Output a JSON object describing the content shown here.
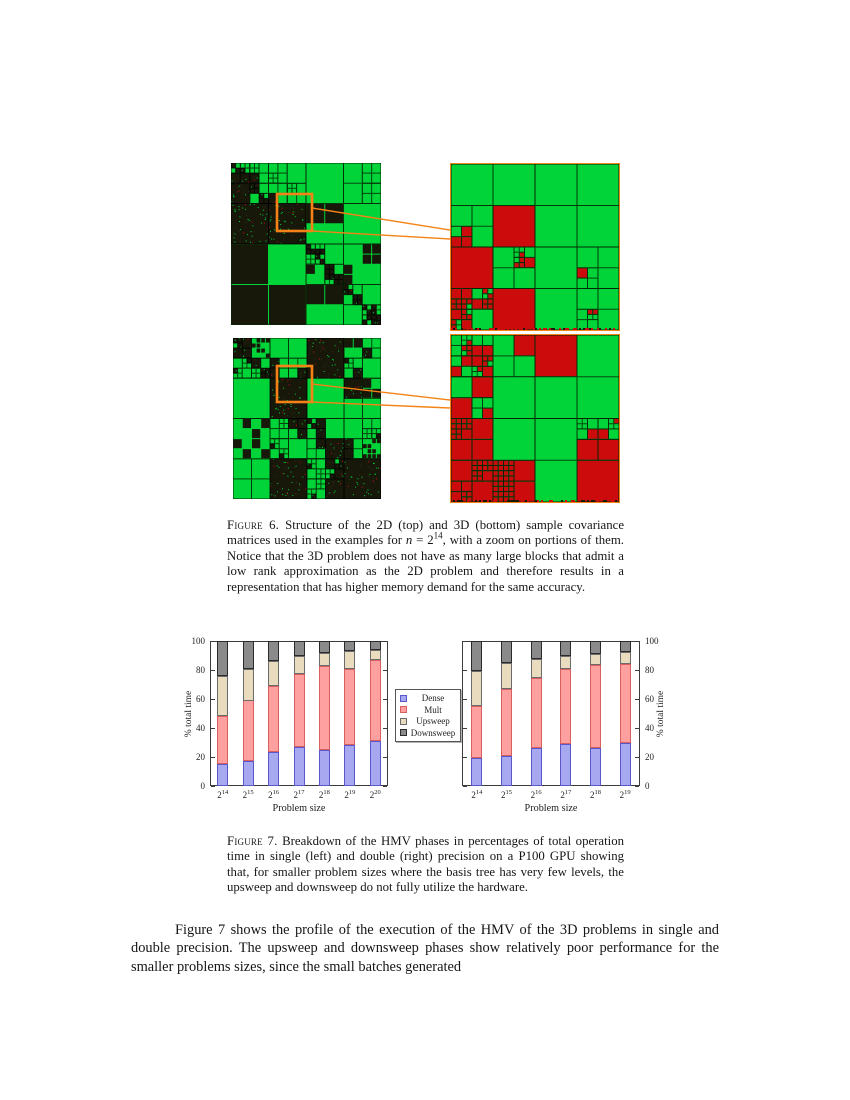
{
  "figure6": {
    "caption": {
      "label": "Figure 6.",
      "part1": "Structure of the 2D (top) and 3D (bottom) sample covariance matrices used in the examples for ",
      "var": "n",
      "equals": " = 2",
      "exponent": "14",
      "part2": ", with a zoom on portions of them. Notice that the 3D problem does not have as many large blocks that admit a low rank approximation as the 2D problem and therefore results in a representation that has higher memory demand for the same accuracy."
    },
    "colors": {
      "green": "#00d438",
      "red": "#cc0c0c",
      "dark": "#17170a",
      "orange": "#f58216",
      "grid": "#063a06"
    },
    "panels": {
      "matrix_2d": {
        "kind": "full",
        "seed": 11,
        "diagSplitP": 0.8,
        "sNear": 0.9,
        "sMid": 0.45,
        "sFar": 0.18,
        "decay": 0.25,
        "dNear": 0.5,
        "dMid": 0.15,
        "dFar": 0.02,
        "clusterFill": 0.4,
        "maxDepth": 5
      },
      "matrix_3d": {
        "kind": "full",
        "seed": 29,
        "diagSplitP": 0.45,
        "sNear": 0.9,
        "sMid": 0.6,
        "sFar": 0.45,
        "decay": 0.2,
        "dNear": 0.55,
        "dMid": 0.35,
        "dFar": 0.18,
        "clusterFill": 0.5,
        "maxDepth": 5
      },
      "zoom_2d": {
        "kind": "zoom",
        "seed": 5,
        "maxDepth": 5,
        "base": 0.15,
        "gain": 1.2,
        "redBase": -0.08,
        "redGain": 1.05,
        "clusters": [
          [
            0.03,
            0.62,
            0.2
          ],
          [
            0.1,
            0.78,
            0.24
          ],
          [
            0.24,
            0.9,
            0.22
          ],
          [
            0.38,
            0.99,
            0.16
          ],
          [
            0.45,
            0.6,
            0.09
          ],
          [
            0.3,
            0.44,
            0.07
          ],
          [
            0.96,
            0.04,
            0.09
          ],
          [
            0.56,
            0.36,
            0.06
          ],
          [
            0.76,
            0.63,
            0.05
          ],
          [
            0.86,
            0.86,
            0.06
          ]
        ]
      },
      "zoom_3d": {
        "kind": "zoom",
        "seed": 17,
        "maxDepth": 5,
        "base": 0.25,
        "gain": 1.1,
        "redBase": -0.03,
        "redGain": 1.25,
        "clusters": [
          [
            0.1,
            0.78,
            0.38
          ],
          [
            0.28,
            0.92,
            0.28
          ],
          [
            0.05,
            0.52,
            0.14
          ],
          [
            0.42,
            0.04,
            0.11
          ],
          [
            0.66,
            0.06,
            0.11
          ],
          [
            0.78,
            0.28,
            0.1
          ],
          [
            0.3,
            0.28,
            0.09
          ],
          [
            0.56,
            0.5,
            0.09
          ],
          [
            0.86,
            0.66,
            0.09
          ],
          [
            0.76,
            0.9,
            0.1
          ],
          [
            0.95,
            0.45,
            0.07
          ],
          [
            0.15,
            0.13,
            0.08
          ]
        ]
      }
    }
  },
  "chart_data": [
    {
      "type": "bar",
      "stacked": true,
      "precision": "single",
      "categories": [
        "2^14",
        "2^15",
        "2^16",
        "2^17",
        "2^18",
        "2^19",
        "2^20"
      ],
      "exponents": [
        14,
        15,
        16,
        17,
        18,
        19,
        20
      ],
      "series": [
        {
          "name": "Dense",
          "fill": "#a8a8f0",
          "edge": "#5858cc",
          "values": [
            15.5,
            17.5,
            23.5,
            27,
            25,
            28,
            31
          ]
        },
        {
          "name": "Mult",
          "fill": "#ffa0a0",
          "edge": "#d95f5f",
          "values": [
            33,
            41.5,
            45.5,
            50,
            58,
            53,
            56
          ]
        },
        {
          "name": "Upsweep",
          "fill": "#e9dbbd",
          "edge": "#6b6b6b",
          "values": [
            27.5,
            22,
            17.5,
            12.5,
            9,
            12,
            6.5
          ]
        },
        {
          "name": "Downsweep",
          "fill": "#8a8a8a",
          "edge": "#2b2b2b",
          "values": [
            24,
            19,
            13.5,
            10.5,
            8,
            7,
            6.5
          ]
        }
      ],
      "xlabel": "Problem size",
      "ylabel": "% total time",
      "ylim": [
        0,
        100
      ],
      "yticks": [
        0,
        20,
        40,
        60,
        80,
        100
      ],
      "axis_side": "left",
      "grid": false,
      "legend_position": "right-of-chart"
    },
    {
      "type": "bar",
      "stacked": true,
      "precision": "double",
      "categories": [
        "2^14",
        "2^15",
        "2^16",
        "2^17",
        "2^18",
        "2^19"
      ],
      "exponents": [
        14,
        15,
        16,
        17,
        18,
        19
      ],
      "series": [
        {
          "name": "Dense",
          "fill": "#a8a8f0",
          "edge": "#5858cc",
          "values": [
            19,
            21,
            26,
            29,
            26.5,
            29.5
          ]
        },
        {
          "name": "Mult",
          "fill": "#ffa0a0",
          "edge": "#d95f5f",
          "values": [
            36,
            46,
            48.5,
            51.5,
            57,
            54.5
          ]
        },
        {
          "name": "Upsweep",
          "fill": "#e9dbbd",
          "edge": "#6b6b6b",
          "values": [
            24,
            18,
            13,
            9.5,
            7.5,
            8.5
          ]
        },
        {
          "name": "Downsweep",
          "fill": "#8a8a8a",
          "edge": "#2b2b2b",
          "values": [
            21,
            15,
            12.5,
            10,
            9,
            7.5
          ]
        }
      ],
      "xlabel": "Problem size",
      "ylabel": "% total time",
      "ylim": [
        0,
        100
      ],
      "yticks": [
        0,
        20,
        40,
        60,
        80,
        100
      ],
      "axis_side": "right",
      "grid": false,
      "legend_position": "none"
    }
  ],
  "figure7": {
    "caption": {
      "label": "Figure 7.",
      "text": "Breakdown of the HMV phases in percentages of total operation time in single (left) and double (right) precision on a P100 GPU showing that, for smaller problem sizes where the basis tree has very few levels, the upsweep and downsweep do not fully utilize the hardware."
    }
  },
  "body_text": "Figure 7 shows the profile of the execution of the HMV of the 3D problems in single and double precision. The upsweep and downsweep phases show relatively poor performance for the smaller problems sizes, since the small batches generated"
}
